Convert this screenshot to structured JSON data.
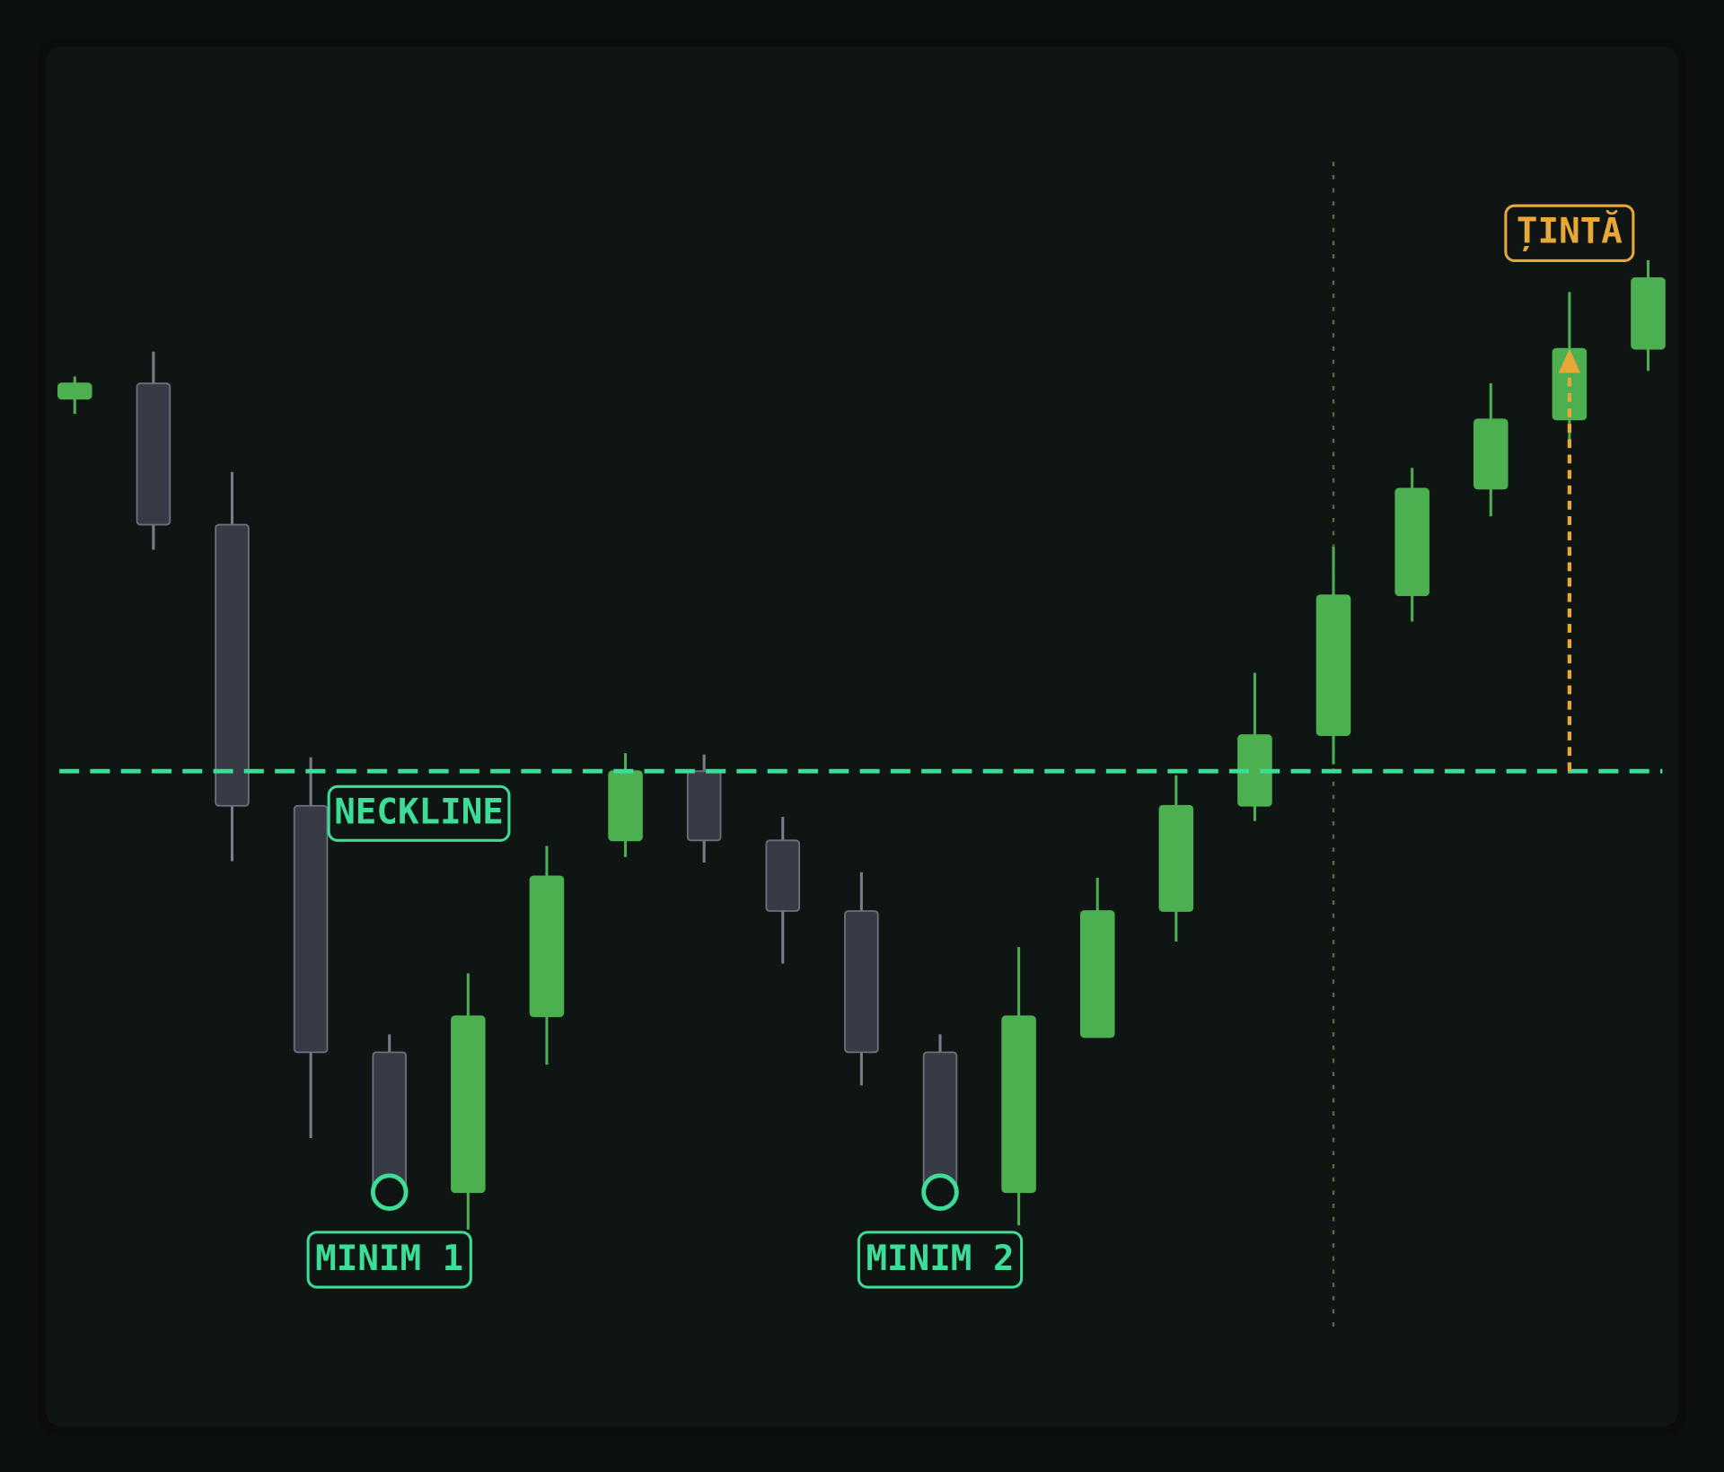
{
  "chart_data": {
    "type": "candlestick",
    "open": [
      74.4,
      75.5,
      65.3,
      45.0,
      27.2,
      17.1,
      29.8,
      42.5,
      47.5,
      42.5,
      37.4,
      27.2,
      17.1,
      28.3,
      37.4,
      45.0,
      50.1,
      60.2,
      67.9,
      72.9,
      78.0
    ],
    "high": [
      76.0,
      77.8,
      69.1,
      48.5,
      28.5,
      32.9,
      42.1,
      48.8,
      48.7,
      44.2,
      40.2,
      28.5,
      34.8,
      39.8,
      47.2,
      54.6,
      63.7,
      69.4,
      75.5,
      82.1,
      84.4
    ],
    "low": [
      73.3,
      63.5,
      41.0,
      21.0,
      17.1,
      14.4,
      26.3,
      41.3,
      40.9,
      33.6,
      24.8,
      17.1,
      14.7,
      28.3,
      35.2,
      43.9,
      48.0,
      58.3,
      65.9,
      71.4,
      76.4
    ],
    "close": [
      75.5,
      65.3,
      45.0,
      27.2,
      17.1,
      29.8,
      39.9,
      47.5,
      42.5,
      37.4,
      27.2,
      17.1,
      29.8,
      37.4,
      45.0,
      50.1,
      60.2,
      67.9,
      72.9,
      78.0,
      83.1
    ],
    "up_color": "#4caf50",
    "down_color": "#383b46",
    "ylim": [
      0,
      100
    ],
    "neckline": {
      "label": "NECKLINE",
      "value": 47.5,
      "color": "#3ddc97"
    },
    "minima": [
      {
        "label": "MINIM 1",
        "index": 4
      },
      {
        "label": "MINIM 2",
        "index": 11
      }
    ],
    "target": {
      "label": "ȚINTĂ",
      "value": 78.0,
      "index": 19,
      "color": "#e8a838"
    },
    "breakout_index": 16
  }
}
